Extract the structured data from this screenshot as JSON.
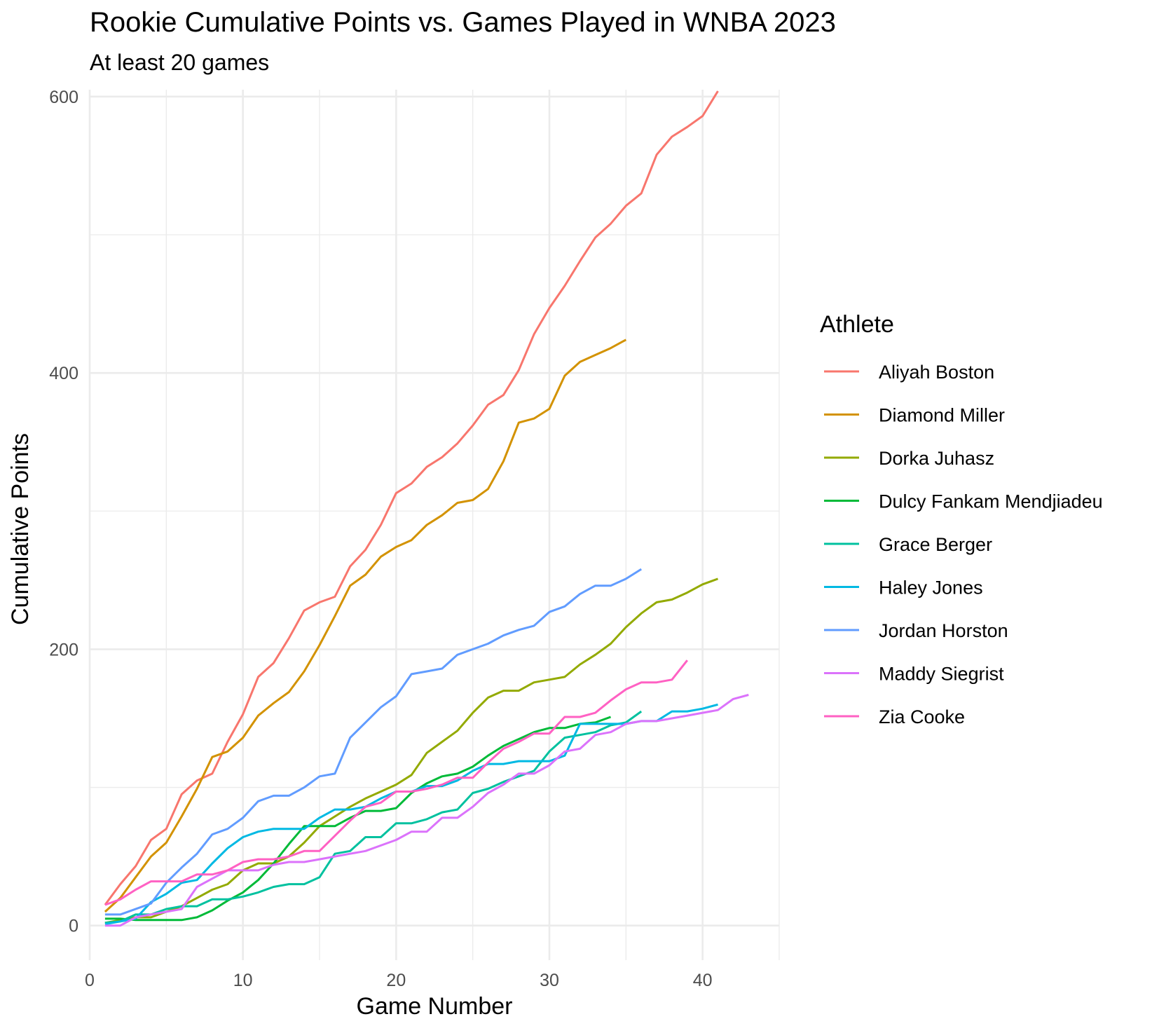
{
  "chart_data": {
    "type": "line",
    "title": "Rookie Cumulative Points vs. Games Played in WNBA 2023",
    "subtitle": "At least 20 games",
    "xlabel": "Game Number",
    "ylabel": "Cumulative Points",
    "xlim": [
      0,
      45
    ],
    "ylim": [
      -25,
      605
    ],
    "x_ticks": [
      0,
      10,
      20,
      30,
      40
    ],
    "y_ticks": [
      0,
      200,
      400,
      600
    ],
    "x_tick_labels": [
      "0",
      "10",
      "20",
      "30",
      "40"
    ],
    "y_tick_labels": [
      "0",
      "200",
      "400",
      "600"
    ],
    "grid": true,
    "legend_title": "Athlete",
    "legend_position": "right",
    "series": [
      {
        "name": "Aliyah Boston",
        "color": "#F8766D",
        "values": [
          15,
          30,
          43,
          62,
          70,
          95,
          105,
          110,
          133,
          153,
          180,
          190,
          208,
          228,
          234,
          238,
          260,
          272,
          290,
          313,
          320,
          332,
          339,
          349,
          362,
          377,
          384,
          402,
          428,
          447,
          463,
          481,
          498,
          508,
          521,
          530,
          558,
          571,
          578,
          586,
          604
        ]
      },
      {
        "name": "Diamond Miller",
        "color": "#D39200",
        "values": [
          10,
          20,
          35,
          50,
          60,
          79,
          99,
          122,
          126,
          136,
          152,
          161,
          169,
          184,
          203,
          224,
          246,
          254,
          267,
          274,
          279,
          290,
          297,
          306,
          308,
          316,
          336,
          364,
          367,
          374,
          398,
          408,
          413,
          418,
          424
        ]
      },
      {
        "name": "Dorka Juhasz",
        "color": "#93AA00",
        "values": [
          2,
          4,
          6,
          6,
          10,
          14,
          20,
          26,
          30,
          40,
          45,
          45,
          50,
          60,
          72,
          79,
          86,
          92,
          97,
          102,
          109,
          125,
          133,
          141,
          154,
          165,
          170,
          170,
          176,
          178,
          180,
          189,
          196,
          204,
          216,
          226,
          234,
          236,
          241,
          247,
          251
        ]
      },
      {
        "name": "Dulcy Fankam Mendjiadeu",
        "color": "#00BA38",
        "values": [
          5,
          5,
          4,
          4,
          4,
          4,
          6,
          11,
          18,
          24,
          33,
          45,
          59,
          72,
          72,
          72,
          78,
          83,
          83,
          85,
          96,
          103,
          108,
          110,
          115,
          123,
          130,
          135,
          140,
          143,
          143,
          146,
          147,
          151
        ]
      },
      {
        "name": "Grace Berger",
        "color": "#00C19F",
        "values": [
          2,
          3,
          8,
          8,
          12,
          14,
          14,
          19,
          19,
          21,
          24,
          28,
          30,
          30,
          35,
          52,
          54,
          64,
          64,
          74,
          74,
          77,
          82,
          84,
          96,
          99,
          104,
          108,
          112,
          126,
          136,
          138,
          140,
          145,
          147,
          155
        ]
      },
      {
        "name": "Haley Jones",
        "color": "#00B9E3",
        "values": [
          1,
          3,
          5,
          17,
          23,
          31,
          33,
          45,
          56,
          64,
          68,
          70,
          70,
          70,
          78,
          84,
          84,
          86,
          92,
          97,
          97,
          101,
          101,
          105,
          112,
          117,
          117,
          119,
          119,
          119,
          123,
          146,
          146,
          146,
          146,
          148,
          148,
          155,
          155,
          157,
          160
        ]
      },
      {
        "name": "Jordan Horston",
        "color": "#619CFF",
        "values": [
          8,
          8,
          12,
          16,
          31,
          42,
          52,
          66,
          70,
          78,
          90,
          94,
          94,
          100,
          108,
          110,
          136,
          147,
          158,
          166,
          182,
          184,
          186,
          196,
          200,
          204,
          210,
          214,
          217,
          227,
          231,
          240,
          246,
          246,
          251,
          258
        ]
      },
      {
        "name": "Maddy Siegrist",
        "color": "#DB72FB",
        "values": [
          0,
          0,
          6,
          8,
          10,
          12,
          28,
          34,
          40,
          40,
          40,
          44,
          46,
          46,
          48,
          50,
          52,
          54,
          58,
          62,
          68,
          68,
          78,
          78,
          86,
          96,
          102,
          110,
          110,
          116,
          126,
          128,
          138,
          140,
          146,
          148,
          148,
          150,
          152,
          154,
          156,
          164,
          167
        ]
      },
      {
        "name": "Zia Cooke",
        "color": "#FF61C3",
        "values": [
          15,
          19,
          26,
          32,
          32,
          32,
          37,
          37,
          40,
          46,
          48,
          48,
          50,
          54,
          54,
          65,
          76,
          86,
          89,
          97,
          97,
          99,
          102,
          107,
          107,
          118,
          128,
          133,
          139,
          139,
          151,
          151,
          154,
          163,
          171,
          176,
          176,
          178,
          192
        ]
      }
    ]
  }
}
